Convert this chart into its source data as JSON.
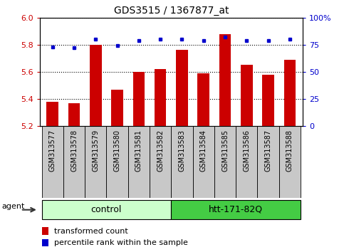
{
  "title": "GDS3515 / 1367877_at",
  "categories": [
    "GSM313577",
    "GSM313578",
    "GSM313579",
    "GSM313580",
    "GSM313581",
    "GSM313582",
    "GSM313583",
    "GSM313584",
    "GSM313585",
    "GSM313586",
    "GSM313587",
    "GSM313588"
  ],
  "red_values": [
    5.38,
    5.37,
    5.8,
    5.47,
    5.6,
    5.62,
    5.76,
    5.59,
    5.88,
    5.65,
    5.58,
    5.69
  ],
  "blue_values": [
    73,
    72,
    80,
    74,
    79,
    80,
    80,
    79,
    82,
    79,
    79,
    80
  ],
  "ylim_left": [
    5.2,
    6.0
  ],
  "ylim_right": [
    0,
    100
  ],
  "yticks_left": [
    5.2,
    5.4,
    5.6,
    5.8,
    6.0
  ],
  "yticks_right": [
    0,
    25,
    50,
    75,
    100
  ],
  "ytick_labels_right": [
    "0",
    "25",
    "50",
    "75",
    "100%"
  ],
  "group1_label": "control",
  "group2_label": "htt-171-82Q",
  "group1_n": 6,
  "group2_n": 6,
  "agent_label": "agent",
  "legend_red": "transformed count",
  "legend_blue": "percentile rank within the sample",
  "bar_color": "#cc0000",
  "dot_color": "#0000cc",
  "left_axis_color": "#cc0000",
  "right_axis_color": "#0000cc",
  "tick_cell_color": "#c8c8c8",
  "group1_color": "#ccffcc",
  "group2_color": "#44cc44",
  "bar_width": 0.55,
  "figsize": [
    4.83,
    3.54
  ],
  "dpi": 100
}
